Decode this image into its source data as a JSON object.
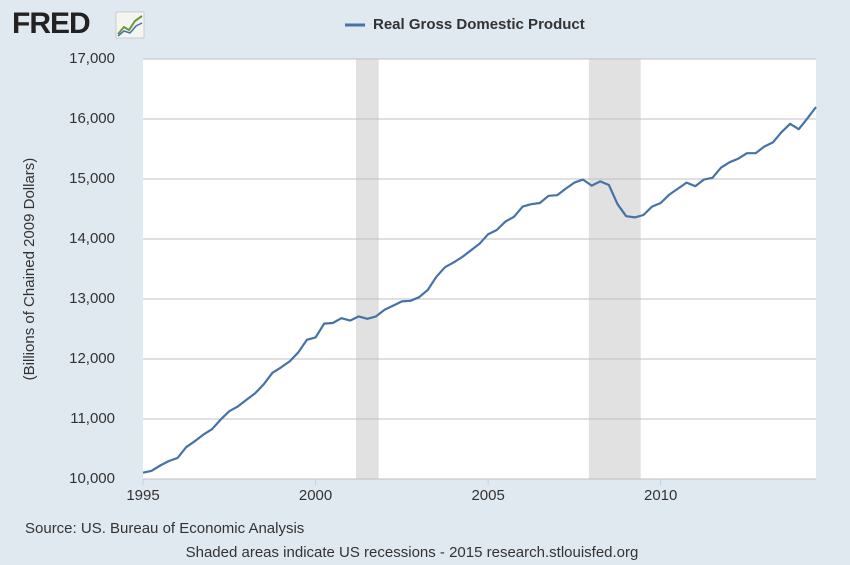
{
  "logo": "FRED",
  "chart_data": {
    "type": "line",
    "ylabel": "(Billions of Chained 2009 Dollars)",
    "source": "Source: US. Bureau of Economic Analysis",
    "note": "Shaded areas indicate US recessions - 2015 research.stlouisfed.org",
    "x": [
      1995,
      1995.25,
      1995.5,
      1995.75,
      1996,
      1996.25,
      1996.5,
      1996.75,
      1997,
      1997.25,
      1997.5,
      1997.75,
      1998,
      1998.25,
      1998.5,
      1998.75,
      1999,
      1999.25,
      1999.5,
      1999.75,
      2000,
      2000.25,
      2000.5,
      2000.75,
      2001,
      2001.25,
      2001.5,
      2001.75,
      2002,
      2002.25,
      2002.5,
      2002.75,
      2003,
      2003.25,
      2003.5,
      2003.75,
      2004,
      2004.25,
      2004.5,
      2004.75,
      2005,
      2005.25,
      2005.5,
      2005.75,
      2006,
      2006.25,
      2006.5,
      2006.75,
      2007,
      2007.25,
      2007.5,
      2007.75,
      2008,
      2008.25,
      2008.5,
      2008.75,
      2009,
      2009.25,
      2009.5,
      2009.75,
      2010,
      2010.25,
      2010.5,
      2010.75,
      2011,
      2011.25,
      2011.5,
      2011.75,
      2012,
      2012.25,
      2012.5,
      2012.75,
      2013,
      2013.25,
      2013.5,
      2013.75,
      2014,
      2014.25,
      2014.5
    ],
    "series": [
      {
        "name": "Real Gross Domestic Product",
        "color": "#4572a7",
        "values": [
          10106,
          10137,
          10225,
          10300,
          10350,
          10530,
          10630,
          10740,
          10830,
          10990,
          11130,
          11210,
          11320,
          11430,
          11580,
          11770,
          11860,
          11960,
          12110,
          12320,
          12360,
          12590,
          12600,
          12680,
          12640,
          12710,
          12670,
          12710,
          12820,
          12890,
          12960,
          12970,
          13030,
          13150,
          13370,
          13530,
          13610,
          13700,
          13810,
          13920,
          14080,
          14150,
          14290,
          14370,
          14540,
          14580,
          14600,
          14720,
          14730,
          14840,
          14940,
          14990,
          14890,
          14960,
          14900,
          14580,
          14380,
          14360,
          14400,
          14540,
          14600,
          14740,
          14840,
          14940,
          14880,
          14990,
          15020,
          15190,
          15280,
          15340,
          15430,
          15430,
          15540,
          15610,
          15780,
          15920,
          15830,
          16010,
          16200
        ]
      }
    ],
    "recessions": [
      [
        2001.17,
        2001.83
      ],
      [
        2007.92,
        2009.42
      ]
    ],
    "xlim": [
      1995,
      2014.5
    ],
    "xticks": [
      1995,
      2000,
      2005,
      2010
    ],
    "ylim": [
      10000,
      17000
    ],
    "yticks": [
      {
        "value": 10000,
        "label": "10,000"
      },
      {
        "value": 11000,
        "label": "11,000"
      },
      {
        "value": 12000,
        "label": "12,000"
      },
      {
        "value": 13000,
        "label": "13,000"
      },
      {
        "value": 14000,
        "label": "14,000"
      },
      {
        "value": 15000,
        "label": "15,000"
      },
      {
        "value": 16000,
        "label": "16,000"
      },
      {
        "value": 17000,
        "label": "17,000"
      }
    ],
    "grid": true
  }
}
